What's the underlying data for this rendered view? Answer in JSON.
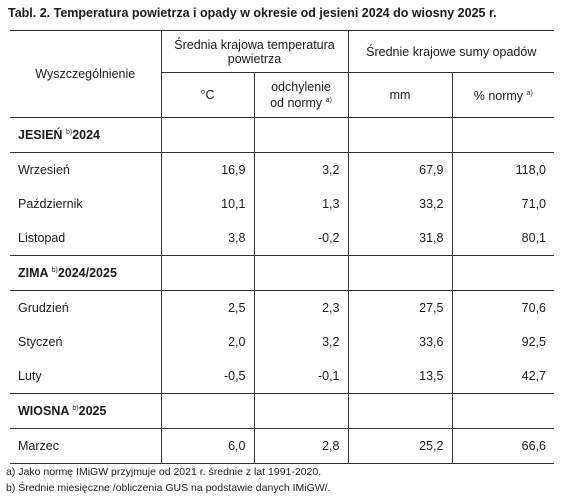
{
  "title": "Tabl. 2. Temperatura powietrza i opady w okresie od jesieni 2024 do wiosny 2025 r.",
  "header": {
    "stub": "Wyszczególnienie",
    "group_temp": "Średnia krajowa temperatura powietrza",
    "group_precip": "Średnie krajowe sumy opadów",
    "col_temp": "°C",
    "col_temp_dev": "odchylenie od normy",
    "col_temp_dev_sup": "a)",
    "col_mm": "mm",
    "col_pct": "% normy",
    "col_pct_sup": "a)"
  },
  "sections": [
    {
      "name": "JESIEŃ",
      "sup": "b)",
      "period": "2024",
      "rows": [
        {
          "label": "Wrzesień",
          "temp": "16,9",
          "dev": "3,2",
          "mm": "67,9",
          "pct": "118,0"
        },
        {
          "label": "Październik",
          "temp": "10,1",
          "dev": "1,3",
          "mm": "33,2",
          "pct": "71,0"
        },
        {
          "label": "Listopad",
          "temp": "3,8",
          "dev": "-0,2",
          "mm": "31,8",
          "pct": "80,1"
        }
      ]
    },
    {
      "name": "ZIMA",
      "sup": "b)",
      "period": "2024/2025",
      "rows": [
        {
          "label": "Grudzień",
          "temp": "2,5",
          "dev": "2,3",
          "mm": "27,5",
          "pct": "70,6"
        },
        {
          "label": "Styczeń",
          "temp": "2,0",
          "dev": "3,2",
          "mm": "33,6",
          "pct": "92,5"
        },
        {
          "label": "Luty",
          "temp": "-0,5",
          "dev": "-0,1",
          "mm": "13,5",
          "pct": "42,7"
        }
      ]
    },
    {
      "name": "WIOSNA",
      "sup": "b)",
      "period": "2025",
      "rows": [
        {
          "label": "Marzec",
          "temp": "6,0",
          "dev": "2,8",
          "mm": "25,2",
          "pct": "66,6"
        }
      ]
    }
  ],
  "notes": [
    "a) Jako normę IMiGW przyjmuje od 2021 r. średnie z lat 1991-2020.",
    "b) Średnie miesięczne /obliczenia GUS na podstawie danych IMiGW/."
  ]
}
